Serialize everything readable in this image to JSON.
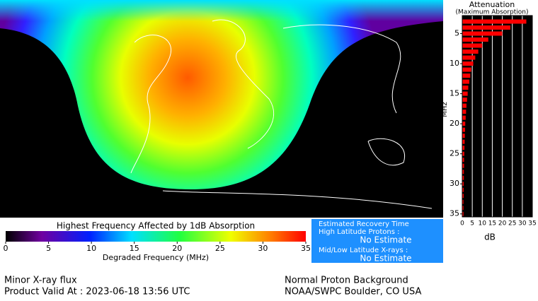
{
  "map": {
    "colorbar": {
      "title": "Highest Frequency Affected by 1dB Absorption",
      "label": "Degraded Frequency (MHz)",
      "range": [
        0,
        35
      ],
      "ticks": [
        0,
        5,
        10,
        15,
        20,
        25,
        30,
        35
      ]
    }
  },
  "chart_data": {
    "type": "hbar",
    "title": "Attenuation",
    "subtitle": "(Maximum Absorption)",
    "y_label": "MHz",
    "x_label": "dB",
    "color": "#ff0000",
    "categories": [
      3,
      4,
      5,
      6,
      7,
      8,
      9,
      10,
      11,
      12,
      13,
      14,
      15,
      16,
      17,
      18,
      19,
      20,
      21,
      22,
      23,
      24,
      25,
      26,
      27,
      28,
      29,
      30,
      31,
      32,
      33,
      34,
      35
    ],
    "values": [
      32,
      24,
      20,
      13,
      10,
      8,
      6.5,
      5.5,
      4.5,
      4,
      3.5,
      3,
      2.7,
      2.4,
      2.1,
      1.9,
      1.7,
      1.5,
      1.4,
      1.3,
      1.2,
      1.1,
      1,
      0.9,
      0.9,
      0.8,
      0.8,
      0.7,
      0.7,
      0.7,
      0.6,
      0.6,
      0.6
    ],
    "xlim": [
      0,
      35
    ],
    "xticks": [
      0,
      5,
      10,
      15,
      20,
      25,
      30,
      35
    ],
    "ylim": [
      2,
      35.5
    ],
    "yticks": [
      5,
      10,
      15,
      20,
      25,
      30,
      35
    ],
    "grid": true
  },
  "info": {
    "title": "Estimated Recovery Time",
    "high_label": "High Latitude Protons :",
    "high_value": "No Estimate",
    "low_label": "Mid/Low Latitude X-rays :",
    "low_value": "No Estimate"
  },
  "footer": {
    "left1": "Minor X-ray flux",
    "left2": "Product Valid At : 2023-06-18 13:56 UTC",
    "right1": "Normal Proton Background",
    "right2": "NOAA/SWPC Boulder, CO USA"
  }
}
